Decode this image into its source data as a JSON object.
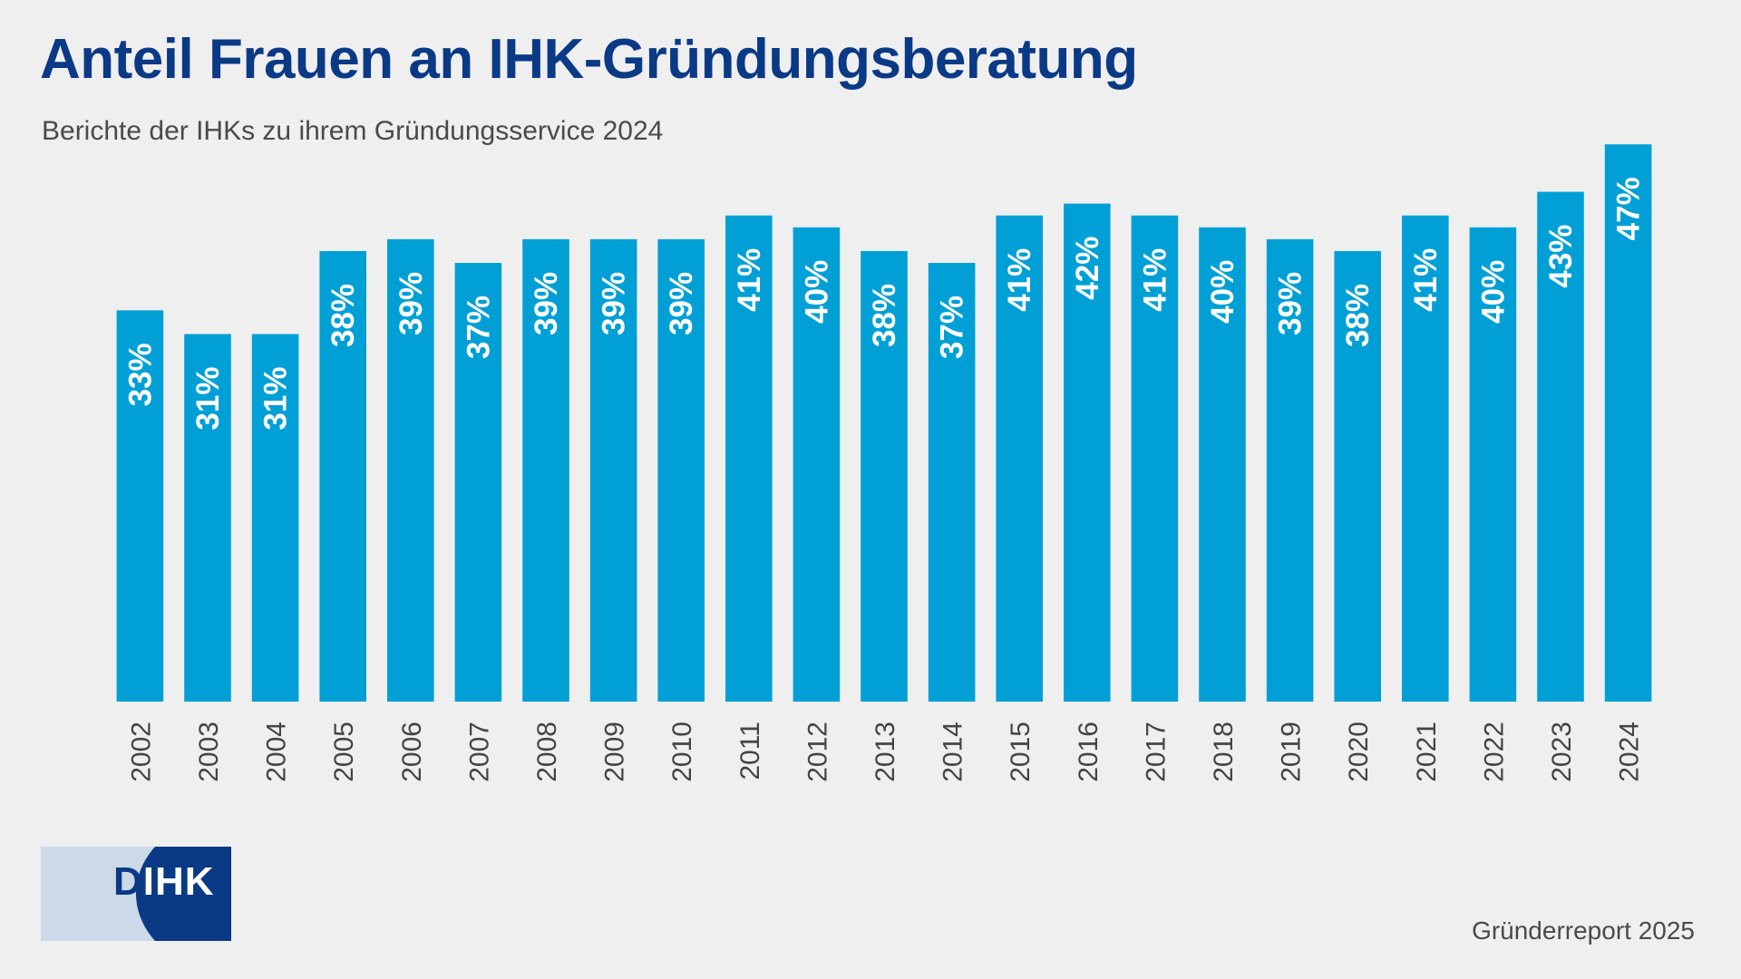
{
  "title": "Anteil Frauen an IHK-Gründungsberatung",
  "subtitle": "Berichte der IHKs zu ihrem Gründungsservice 2024",
  "footer": "Gründerreport 2025",
  "logo_text": "DIHK",
  "colors": {
    "bar": "#00a0d6",
    "title": "#0a3a86",
    "label": "#ffffff",
    "axis_text": "#444444",
    "background": "#efefef"
  },
  "chart_data": {
    "type": "bar",
    "title": "Anteil Frauen an IHK-Gründungsberatung",
    "subtitle": "Berichte der IHKs zu ihrem Gründungsservice 2024",
    "categories": [
      "2002",
      "2003",
      "2004",
      "2005",
      "2006",
      "2007",
      "2008",
      "2009",
      "2010",
      "2011",
      "2012",
      "2013",
      "2014",
      "2015",
      "2016",
      "2017",
      "2018",
      "2019",
      "2020",
      "2021",
      "2022",
      "2023",
      "2024"
    ],
    "values": [
      33,
      31,
      31,
      38,
      39,
      37,
      39,
      39,
      39,
      41,
      40,
      38,
      37,
      41,
      42,
      41,
      40,
      39,
      38,
      41,
      40,
      43,
      47
    ],
    "data_labels": [
      "33%",
      "31%",
      "31%",
      "38%",
      "39%",
      "37%",
      "39%",
      "39%",
      "39%",
      "41%",
      "40%",
      "38%",
      "37%",
      "41%",
      "42%",
      "41%",
      "40%",
      "39%",
      "38%",
      "41%",
      "40%",
      "43%",
      "47%"
    ],
    "unit": "%",
    "ylim": [
      0,
      47
    ],
    "grid": false,
    "y_axis_visible": false,
    "legend": "none"
  }
}
